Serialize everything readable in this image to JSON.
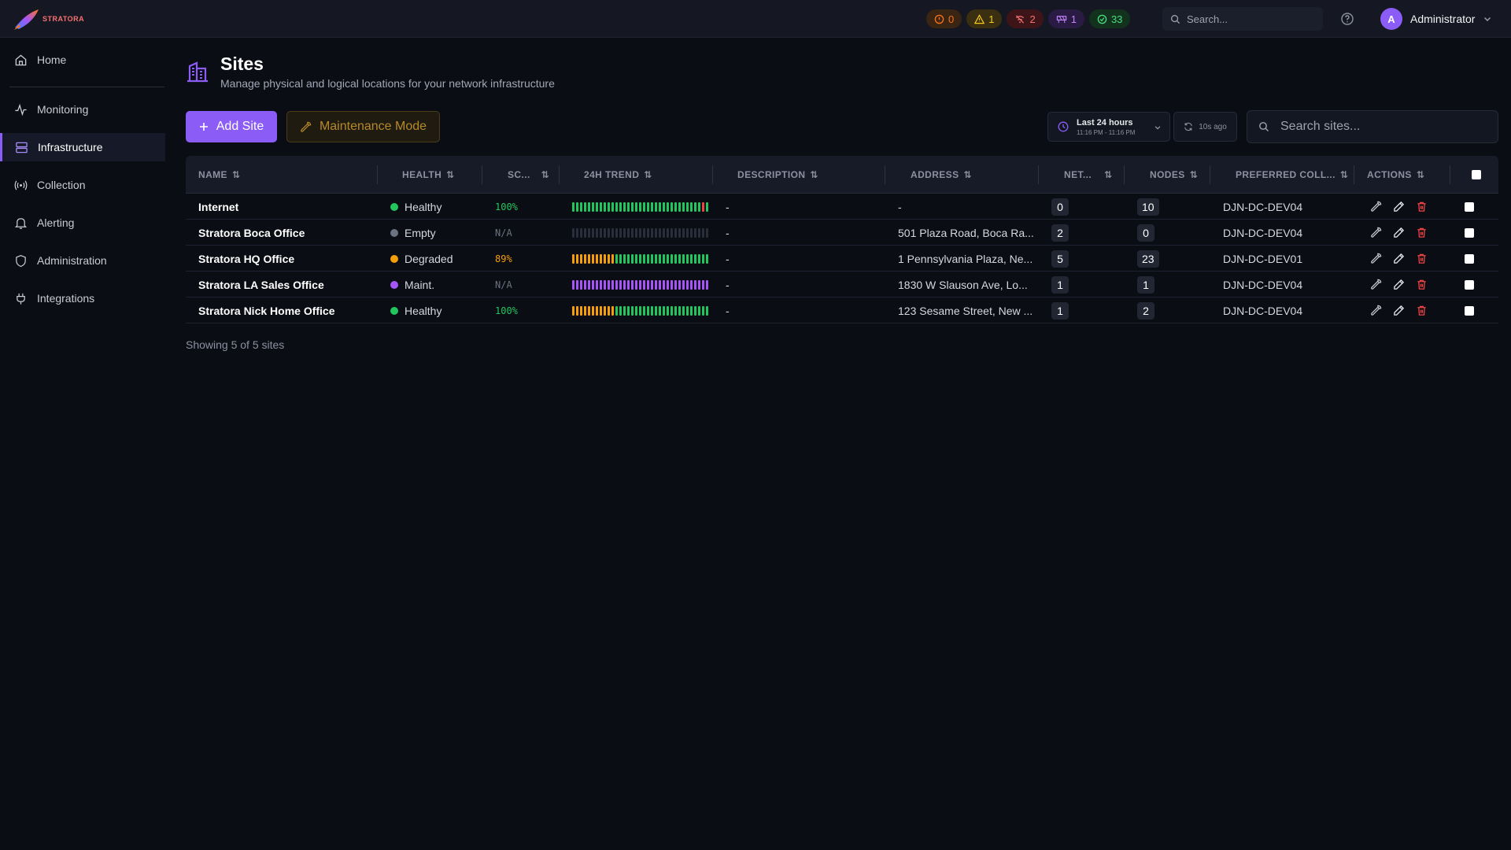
{
  "app": {
    "brand": "STRATORA",
    "colors": {
      "accent": "#8b5cf6",
      "healthy": "#22c55e",
      "degraded": "#f59e0b",
      "maint": "#a855f7",
      "empty": "#6b7280",
      "danger": "#ef4444"
    }
  },
  "topbar": {
    "badges": [
      {
        "icon": "alert-circle-icon",
        "count": "0"
      },
      {
        "icon": "warning-triangle-icon",
        "count": "1"
      },
      {
        "icon": "signal-off-icon",
        "count": "2"
      },
      {
        "icon": "maintenance-icon",
        "count": "1"
      },
      {
        "icon": "check-circle-icon",
        "count": "33"
      }
    ],
    "search_placeholder": "Search...",
    "user": {
      "initial": "A",
      "name": "Administrator"
    }
  },
  "sidebar": {
    "items": [
      {
        "label": "Home",
        "icon": "home-icon"
      },
      {
        "label": "Monitoring",
        "icon": "activity-icon"
      },
      {
        "label": "Infrastructure",
        "icon": "server-icon"
      },
      {
        "label": "Collection",
        "icon": "broadcast-icon"
      },
      {
        "label": "Alerting",
        "icon": "bell-icon"
      },
      {
        "label": "Administration",
        "icon": "shield-icon"
      },
      {
        "label": "Integrations",
        "icon": "plug-icon"
      }
    ]
  },
  "page": {
    "title": "Sites",
    "subtitle": "Manage physical and logical locations for your network infrastructure",
    "add_label": "Add Site",
    "maintenance_label": "Maintenance Mode",
    "time_range": {
      "label": "Last 24 hours",
      "sub": "11:16 PM - 11:16 PM"
    },
    "refresh_label": "10s ago",
    "search_placeholder": "Search sites...",
    "footer": "Showing 5 of 5 sites"
  },
  "table": {
    "columns": [
      "NAME",
      "HEALTH",
      "SC...",
      "24H TREND",
      "DESCRIPTION",
      "ADDRESS",
      "NET...",
      "NODES",
      "PREFERRED COLL...",
      "ACTIONS"
    ],
    "rows": [
      {
        "name": "Internet",
        "health": "Healthy",
        "health_color": "#22c55e",
        "score": "100%",
        "score_color": "#22c55e",
        "trend": "gggggggggggggggggggggggggggggggggrg",
        "description": "-",
        "address": "-",
        "networks": "0",
        "nodes": "10",
        "collector": "DJN-DC-DEV04"
      },
      {
        "name": "Stratora Boca Office",
        "health": "Empty",
        "health_color": "#6b7280",
        "score": "N/A",
        "score_color": "#6b7280",
        "trend": "eeeeeeeeeeeeeeeeeeeeeeeeeeeeeeeeeee",
        "description": "-",
        "address": "501 Plaza Road, Boca Ra...",
        "networks": "2",
        "nodes": "0",
        "collector": "DJN-DC-DEV04"
      },
      {
        "name": "Stratora HQ Office",
        "health": "Degraded",
        "health_color": "#f59e0b",
        "score": "89%",
        "score_color": "#f59e0b",
        "trend": "oooooooooooggggggggggggggggggggggggg",
        "description": "-",
        "address": "1 Pennsylvania Plaza, Ne...",
        "networks": "5",
        "nodes": "23",
        "collector": "DJN-DC-DEV01"
      },
      {
        "name": "Stratora LA Sales Office",
        "health": "Maint.",
        "health_color": "#a855f7",
        "score": "N/A",
        "score_color": "#6b7280",
        "trend": "ppppppppppppppppppppppppppppppppppp",
        "description": "-",
        "address": "1830 W Slauson Ave, Lo...",
        "networks": "1",
        "nodes": "1",
        "collector": "DJN-DC-DEV04"
      },
      {
        "name": "Stratora Nick Home Office",
        "health": "Healthy",
        "health_color": "#22c55e",
        "score": "100%",
        "score_color": "#22c55e",
        "trend": "ooooooooooogggggggggggggggggggggggg",
        "description": "-",
        "address": "123 Sesame Street, New ...",
        "networks": "1",
        "nodes": "2",
        "collector": "DJN-DC-DEV04"
      }
    ]
  }
}
